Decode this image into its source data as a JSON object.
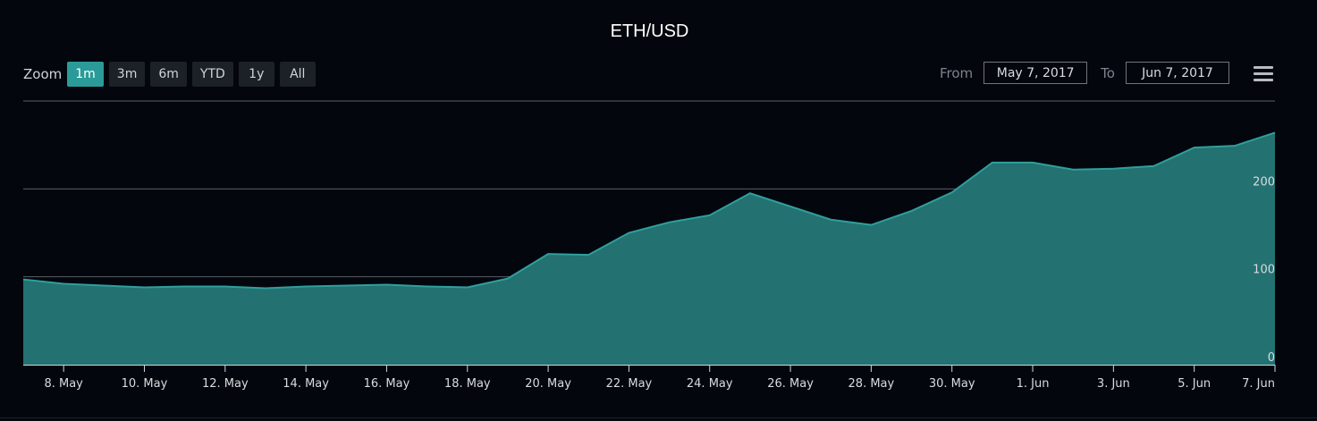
{
  "title": "ETH/USD",
  "zoom": {
    "label": "Zoom",
    "buttons": [
      "1m",
      "3m",
      "6m",
      "YTD",
      "1y",
      "All"
    ],
    "active": "1m"
  },
  "range": {
    "from_label": "From",
    "from_value": "May 7, 2017",
    "to_label": "To",
    "to_value": "Jun 7, 2017"
  },
  "menu_icon": "hamburger-menu-icon",
  "colors": {
    "background": "#03070d",
    "area_fill": "#237170",
    "line": "#2f9f9c",
    "accent": "#2a9b98",
    "grid": "#5a5f66"
  },
  "chart_data": {
    "type": "area",
    "title": "ETH/USD",
    "xlabel": "",
    "ylabel": "",
    "x_start_date": "2017-05-07",
    "ylim": [
      0,
      300
    ],
    "y_ticks": [
      0,
      100,
      200
    ],
    "grid": true,
    "x_tick_labels": [
      {
        "label": "8. May",
        "date": "2017-05-08"
      },
      {
        "label": "10. May",
        "date": "2017-05-10"
      },
      {
        "label": "12. May",
        "date": "2017-05-12"
      },
      {
        "label": "14. May",
        "date": "2017-05-14"
      },
      {
        "label": "16. May",
        "date": "2017-05-16"
      },
      {
        "label": "18. May",
        "date": "2017-05-18"
      },
      {
        "label": "20. May",
        "date": "2017-05-20"
      },
      {
        "label": "22. May",
        "date": "2017-05-22"
      },
      {
        "label": "24. May",
        "date": "2017-05-24"
      },
      {
        "label": "26. May",
        "date": "2017-05-26"
      },
      {
        "label": "28. May",
        "date": "2017-05-28"
      },
      {
        "label": "30. May",
        "date": "2017-05-30"
      },
      {
        "label": "1. Jun",
        "date": "2017-06-01"
      },
      {
        "label": "3. Jun",
        "date": "2017-06-03"
      },
      {
        "label": "5. Jun",
        "date": "2017-06-05"
      },
      {
        "label": "7. Jun",
        "date": "2017-06-07"
      }
    ],
    "series": [
      {
        "name": "ETH/USD",
        "x": [
          "2017-05-07",
          "2017-05-08",
          "2017-05-09",
          "2017-05-10",
          "2017-05-11",
          "2017-05-12",
          "2017-05-13",
          "2017-05-14",
          "2017-05-15",
          "2017-05-16",
          "2017-05-17",
          "2017-05-18",
          "2017-05-19",
          "2017-05-20",
          "2017-05-21",
          "2017-05-22",
          "2017-05-23",
          "2017-05-24",
          "2017-05-25",
          "2017-05-26",
          "2017-05-27",
          "2017-05-28",
          "2017-05-29",
          "2017-05-30",
          "2017-05-31",
          "2017-06-01",
          "2017-06-02",
          "2017-06-03",
          "2017-06-04",
          "2017-06-05",
          "2017-06-06",
          "2017-06-07"
        ],
        "values": [
          97,
          92,
          90,
          88,
          89,
          89,
          87,
          89,
          90,
          91,
          89,
          88,
          98,
          126,
          125,
          150,
          162,
          170,
          195,
          180,
          165,
          159,
          175,
          196,
          230,
          230,
          222,
          223,
          226,
          247,
          249,
          264
        ]
      }
    ]
  }
}
